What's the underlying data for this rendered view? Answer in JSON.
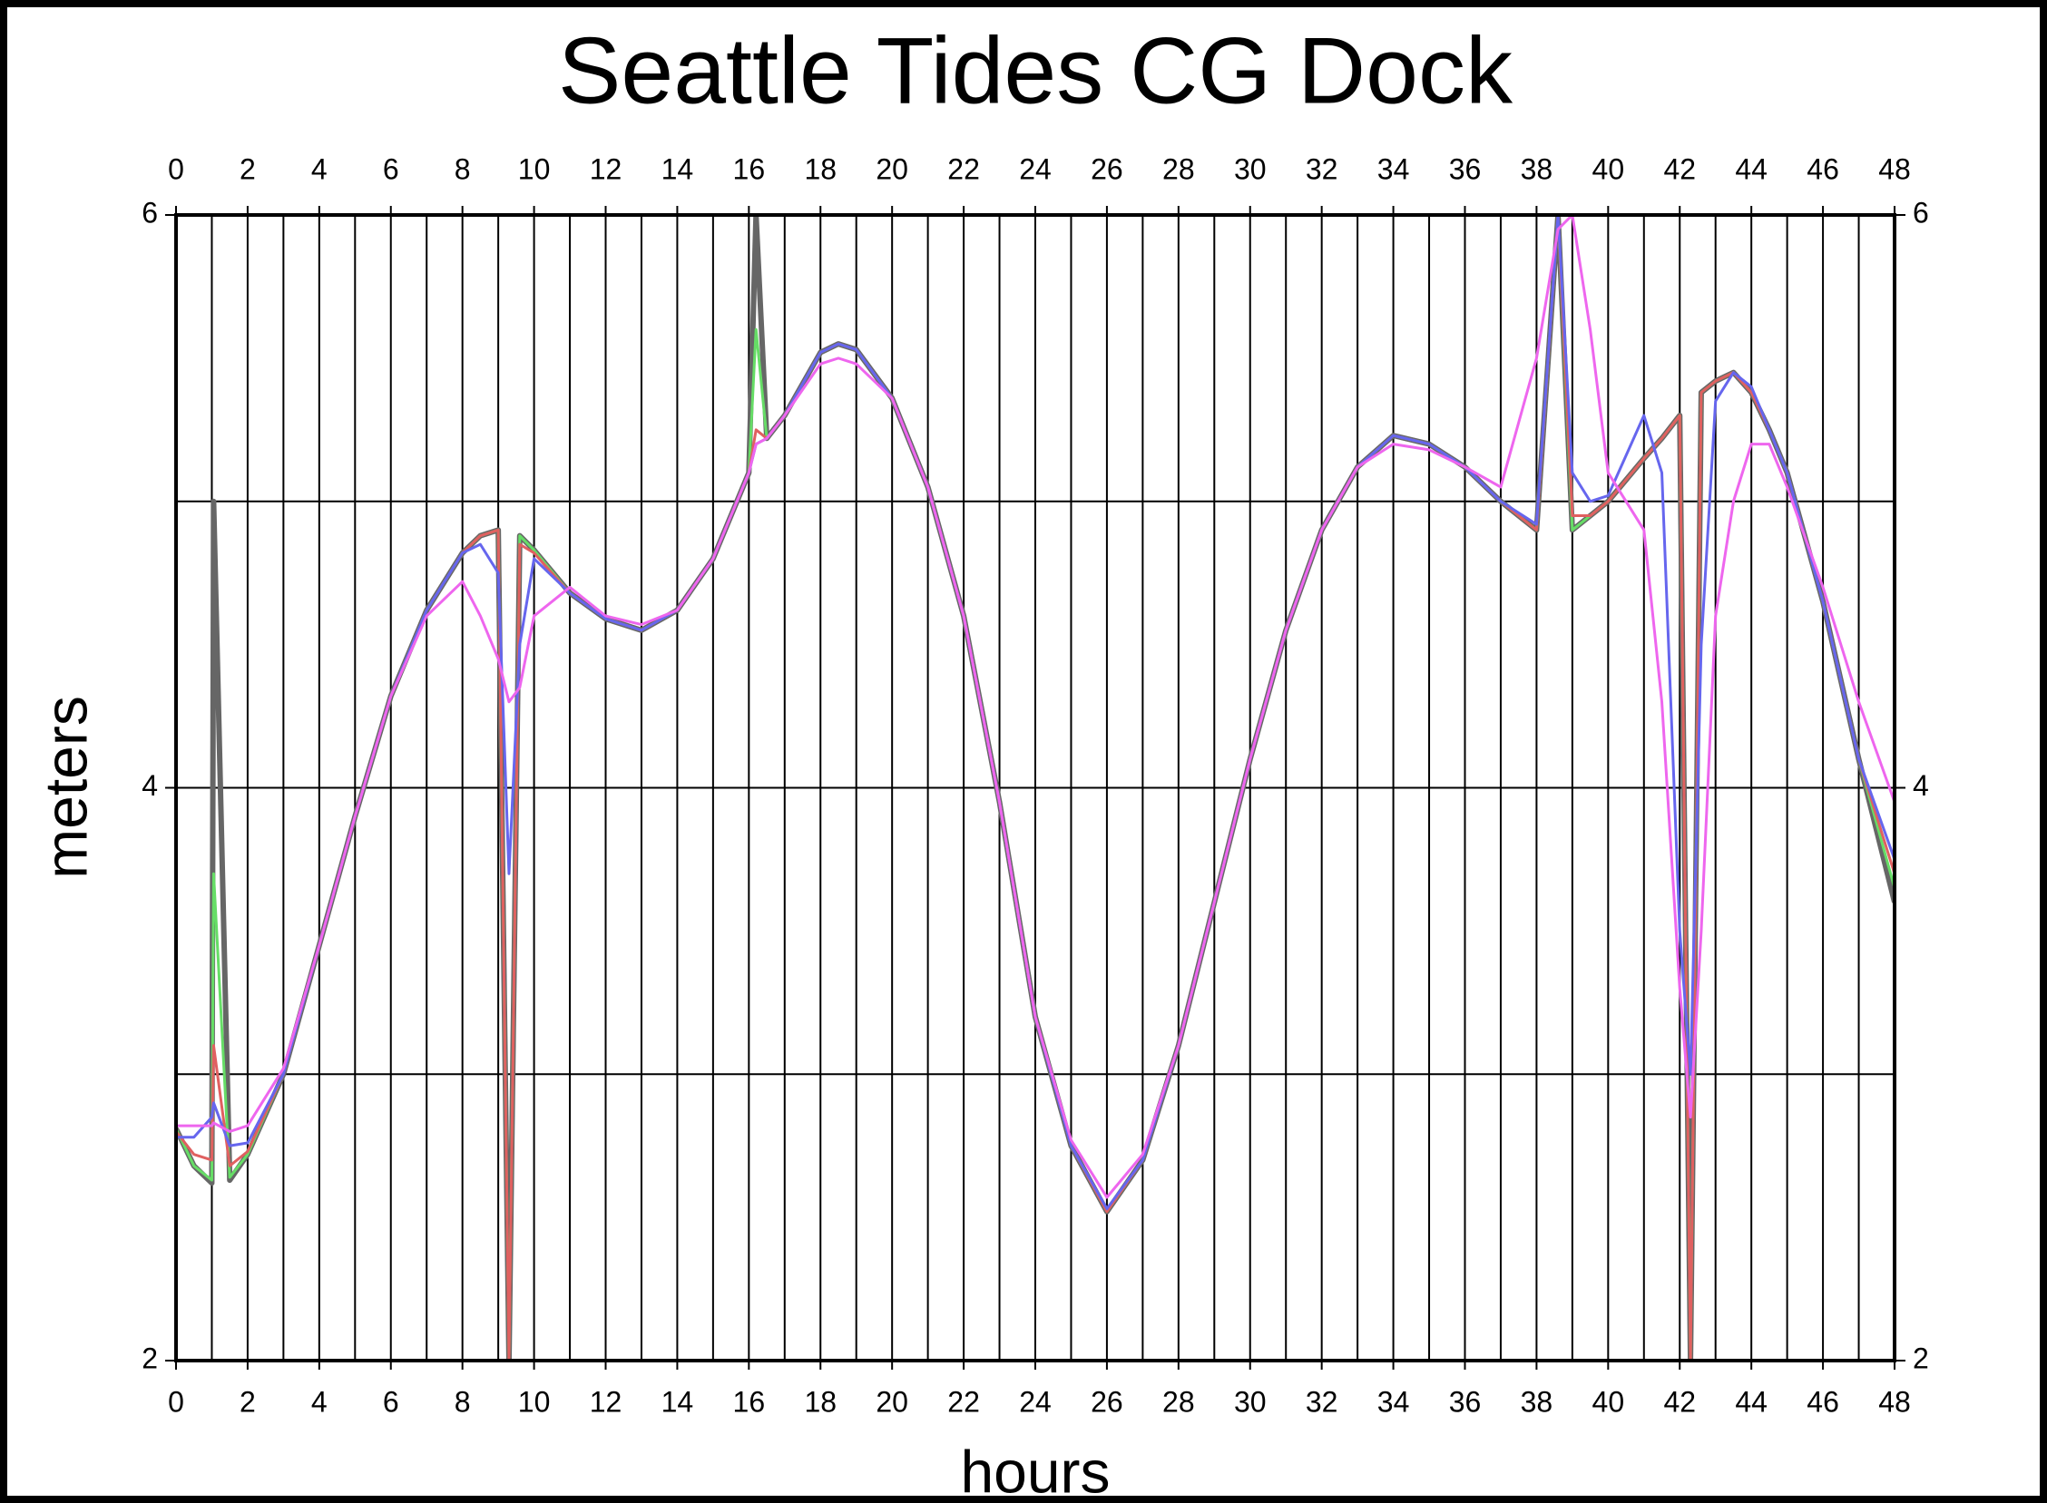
{
  "chart_data": {
    "type": "line",
    "title": "Seattle Tides CG Dock",
    "xlabel": "hours",
    "ylabel": "meters",
    "x": [
      0,
      0.5,
      1,
      1.05,
      1.5,
      2,
      3,
      4,
      5,
      6,
      7,
      8,
      8.5,
      9,
      9.3,
      9.6,
      10,
      11,
      12,
      13,
      14,
      15,
      16,
      16.2,
      16.5,
      17,
      18,
      18.5,
      19,
      20,
      21,
      22,
      23,
      24,
      25,
      26,
      27,
      28,
      29,
      30,
      31,
      32,
      33,
      34,
      35,
      36,
      37,
      38,
      38.6,
      39,
      39.5,
      40,
      41,
      41.5,
      42,
      42.3,
      42.6,
      43,
      43.5,
      44,
      44.5,
      45,
      46,
      47,
      48
    ],
    "series": [
      {
        "color": "#666666",
        "values": [
          2.81,
          2.68,
          2.62,
          5.0,
          2.63,
          2.72,
          3.0,
          3.45,
          3.9,
          4.32,
          4.62,
          4.82,
          4.88,
          4.9,
          2.0,
          4.88,
          4.83,
          4.68,
          4.59,
          4.55,
          4.62,
          4.8,
          5.1,
          6.0,
          5.22,
          5.3,
          5.52,
          5.55,
          5.53,
          5.36,
          5.05,
          4.6,
          3.95,
          3.2,
          2.75,
          2.52,
          2.7,
          3.1,
          3.6,
          4.1,
          4.55,
          4.9,
          5.12,
          5.23,
          5.2,
          5.12,
          5.0,
          4.9,
          6.0,
          4.9,
          4.95,
          5.0,
          5.15,
          5.22,
          5.3,
          2.0,
          5.38,
          5.42,
          5.45,
          5.38,
          5.25,
          5.1,
          4.65,
          4.1,
          3.6
        ]
      },
      {
        "color": "#66dd66",
        "values": [
          2.81,
          2.68,
          2.63,
          3.7,
          2.64,
          2.72,
          3.0,
          3.45,
          3.9,
          4.32,
          4.62,
          4.82,
          4.88,
          4.9,
          2.0,
          4.88,
          4.83,
          4.68,
          4.59,
          4.55,
          4.62,
          4.8,
          5.1,
          5.6,
          5.22,
          5.3,
          5.52,
          5.55,
          5.53,
          5.36,
          5.05,
          4.6,
          3.95,
          3.2,
          2.75,
          2.52,
          2.7,
          3.1,
          3.6,
          4.1,
          4.55,
          4.9,
          5.12,
          5.23,
          5.2,
          5.12,
          5.0,
          4.9,
          6.0,
          4.9,
          4.95,
          5.0,
          5.15,
          5.22,
          5.3,
          2.0,
          5.38,
          5.42,
          5.45,
          5.38,
          5.25,
          5.1,
          4.65,
          4.1,
          3.65
        ]
      },
      {
        "color": "#e06060",
        "values": [
          2.8,
          2.72,
          2.7,
          3.1,
          2.68,
          2.73,
          3.0,
          3.45,
          3.9,
          4.32,
          4.62,
          4.82,
          4.88,
          4.9,
          2.0,
          4.85,
          4.82,
          4.68,
          4.59,
          4.55,
          4.62,
          4.8,
          5.1,
          5.25,
          5.22,
          5.3,
          5.52,
          5.55,
          5.53,
          5.36,
          5.05,
          4.6,
          3.95,
          3.2,
          2.75,
          2.52,
          2.7,
          3.1,
          3.6,
          4.1,
          4.55,
          4.9,
          5.12,
          5.23,
          5.2,
          5.12,
          5.0,
          4.9,
          6.0,
          4.95,
          4.95,
          5.0,
          5.15,
          5.22,
          5.3,
          2.0,
          5.38,
          5.42,
          5.45,
          5.38,
          5.25,
          5.1,
          4.65,
          4.1,
          3.7
        ]
      },
      {
        "color": "#6666ee",
        "values": [
          2.78,
          2.78,
          2.85,
          2.9,
          2.75,
          2.76,
          3.0,
          3.45,
          3.9,
          4.32,
          4.62,
          4.82,
          4.85,
          4.75,
          3.7,
          4.5,
          4.8,
          4.68,
          4.59,
          4.55,
          4.62,
          4.8,
          5.1,
          5.2,
          5.22,
          5.3,
          5.52,
          5.55,
          5.53,
          5.36,
          5.05,
          4.6,
          3.95,
          3.2,
          2.75,
          2.53,
          2.7,
          3.1,
          3.6,
          4.1,
          4.55,
          4.9,
          5.12,
          5.23,
          5.2,
          5.12,
          5.0,
          4.92,
          6.0,
          5.1,
          5.0,
          5.02,
          5.3,
          5.1,
          3.5,
          3.0,
          4.5,
          5.35,
          5.45,
          5.4,
          5.25,
          5.1,
          4.65,
          4.1,
          3.75
        ]
      },
      {
        "color": "#ee66ee",
        "values": [
          2.82,
          2.82,
          2.82,
          2.83,
          2.8,
          2.82,
          3.02,
          3.45,
          3.9,
          4.32,
          4.6,
          4.72,
          4.6,
          4.45,
          4.3,
          4.35,
          4.6,
          4.7,
          4.6,
          4.57,
          4.62,
          4.8,
          5.1,
          5.2,
          5.22,
          5.3,
          5.48,
          5.5,
          5.48,
          5.36,
          5.05,
          4.6,
          3.95,
          3.2,
          2.77,
          2.57,
          2.72,
          3.1,
          3.6,
          4.1,
          4.55,
          4.9,
          5.12,
          5.2,
          5.18,
          5.12,
          5.05,
          5.5,
          5.95,
          6.0,
          5.6,
          5.1,
          4.9,
          4.3,
          3.3,
          2.85,
          3.5,
          4.6,
          5.0,
          5.2,
          5.2,
          5.05,
          4.7,
          4.3,
          3.95
        ]
      }
    ],
    "xlim": [
      0,
      48
    ],
    "xticks": [
      0,
      2,
      4,
      6,
      8,
      10,
      12,
      14,
      16,
      18,
      20,
      22,
      24,
      26,
      28,
      30,
      32,
      34,
      36,
      38,
      40,
      42,
      44,
      46,
      48
    ],
    "xminor": [
      1,
      3,
      5,
      7,
      9,
      11,
      13,
      15,
      17,
      19,
      21,
      23,
      25,
      27,
      29,
      31,
      33,
      35,
      37,
      39,
      41,
      43,
      45,
      47
    ],
    "ylim": [
      2,
      6
    ],
    "yticks": [
      2,
      4,
      6
    ],
    "yminor": [
      3,
      5
    ],
    "grid": true
  }
}
